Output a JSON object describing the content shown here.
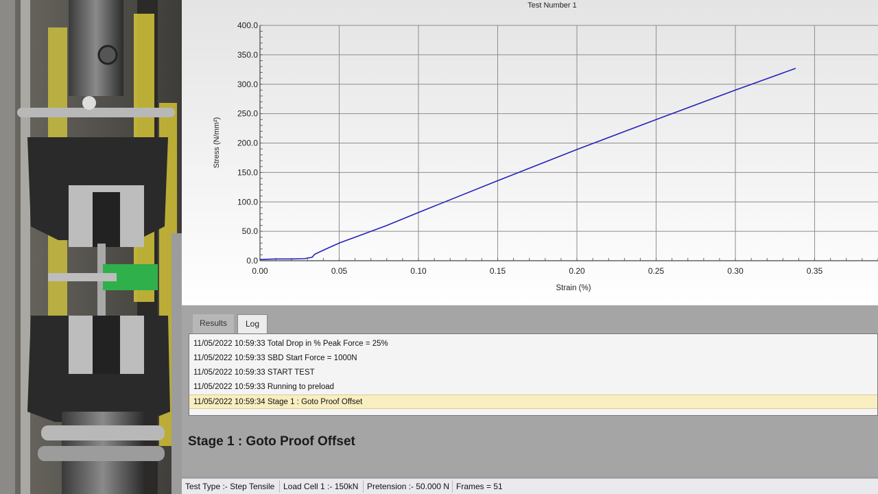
{
  "chart_data": {
    "type": "line",
    "title": "Test Number 1",
    "xlabel": "Strain (%)",
    "ylabel": "Stress (N/mm²)",
    "xlim": [
      0,
      0.39
    ],
    "ylim": [
      0,
      400
    ],
    "x_ticks": [
      0,
      0.05,
      0.1,
      0.15,
      0.2,
      0.25,
      0.3,
      0.35
    ],
    "x_tick_labels": [
      "0.00",
      "0.05",
      "0.10",
      "0.15",
      "0.20",
      "0.25",
      "0.30",
      "0.35"
    ],
    "y_ticks": [
      0,
      50,
      100,
      150,
      200,
      250,
      300,
      350,
      400
    ],
    "y_tick_labels": [
      "0.0",
      "50.0",
      "100.0",
      "150.0",
      "200.0",
      "250.0",
      "300.0",
      "350.0",
      "400.0"
    ],
    "grid": true,
    "series": [
      {
        "color": "#2222bb",
        "x": [
          0,
          0.01,
          0.02,
          0.028,
          0.033,
          0.0345,
          0.04,
          0.05,
          0.06,
          0.08,
          0.1,
          0.15,
          0.2,
          0.25,
          0.3,
          0.338
        ],
        "y": [
          2,
          3,
          3,
          3.5,
          6,
          11,
          18,
          30,
          40,
          60,
          82,
          136,
          189,
          240,
          290,
          327
        ]
      }
    ]
  },
  "tabs": {
    "results": "Results",
    "log": "Log"
  },
  "log": [
    "11/05/2022 10:59:33 Total Drop in % Peak Force = 25%",
    "11/05/2022 10:59:33 SBD Start Force = 1000N",
    "11/05/2022 10:59:33 START TEST",
    "11/05/2022 10:59:33 Running to preload",
    "11/05/2022 10:59:34 Stage 1 : Goto Proof Offset"
  ],
  "stage": "Stage 1 : Goto Proof Offset",
  "status": {
    "test_type": "Test Type :- Step Tensile",
    "load_cell": "Load Cell 1 :- 150kN",
    "pretension": "Pretension :- 50.000 N",
    "frames": "Frames = 51"
  },
  "colors": {
    "series": "#2222bb",
    "sensor": "#2fb04a"
  }
}
